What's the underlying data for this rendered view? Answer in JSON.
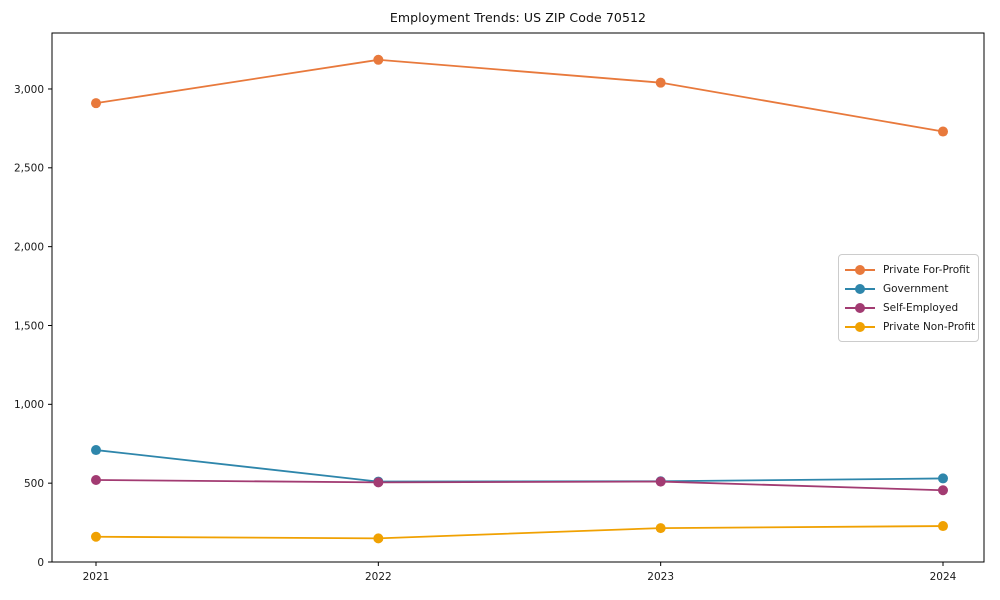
{
  "chart_data": {
    "type": "line",
    "title": "Employment Trends: US ZIP Code 70512",
    "xlabel": "",
    "ylabel": "",
    "x_tick_labels": [
      "2021",
      "2022",
      "2023",
      "2024"
    ],
    "y_ticks": [
      0,
      500,
      1000,
      1500,
      2000,
      2500,
      3000
    ],
    "y_tick_labels": [
      "0",
      "500",
      "1,000",
      "1,500",
      "2,000",
      "2,500",
      "3,000"
    ],
    "ylim": [
      0,
      3355
    ],
    "grid": false,
    "legend_position": "center-right",
    "marker": "circle",
    "series": [
      {
        "name": "Private For-Profit",
        "color": "#E8793C",
        "values": [
          2910,
          3185,
          3040,
          2730
        ]
      },
      {
        "name": "Government",
        "color": "#2E86AB",
        "values": [
          710,
          510,
          512,
          530
        ]
      },
      {
        "name": "Self-Employed",
        "color": "#A23B72",
        "values": [
          520,
          505,
          510,
          455
        ]
      },
      {
        "name": "Private Non-Profit",
        "color": "#F0A102",
        "values": [
          160,
          150,
          215,
          228
        ]
      }
    ]
  }
}
